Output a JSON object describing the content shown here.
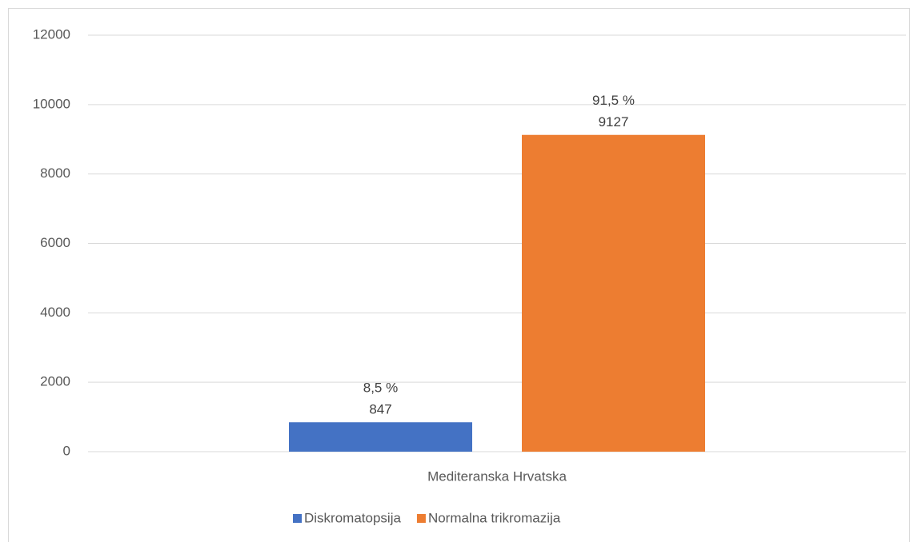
{
  "chart_data": {
    "type": "bar",
    "categories": [
      "Mediteranska Hrvatska"
    ],
    "series": [
      {
        "name": "Diskromatopsija",
        "color": "#4472c4",
        "values": [
          847
        ],
        "percent_labels": [
          "8,5 %"
        ]
      },
      {
        "name": "Normalna trikromazija",
        "color": "#ed7d31",
        "values": [
          9127
        ],
        "percent_labels": [
          "91,5 %"
        ]
      }
    ],
    "ylim": [
      0,
      12000
    ],
    "yticks": [
      0,
      2000,
      4000,
      6000,
      8000,
      10000,
      12000
    ],
    "grid": true,
    "legend": "bottom"
  }
}
